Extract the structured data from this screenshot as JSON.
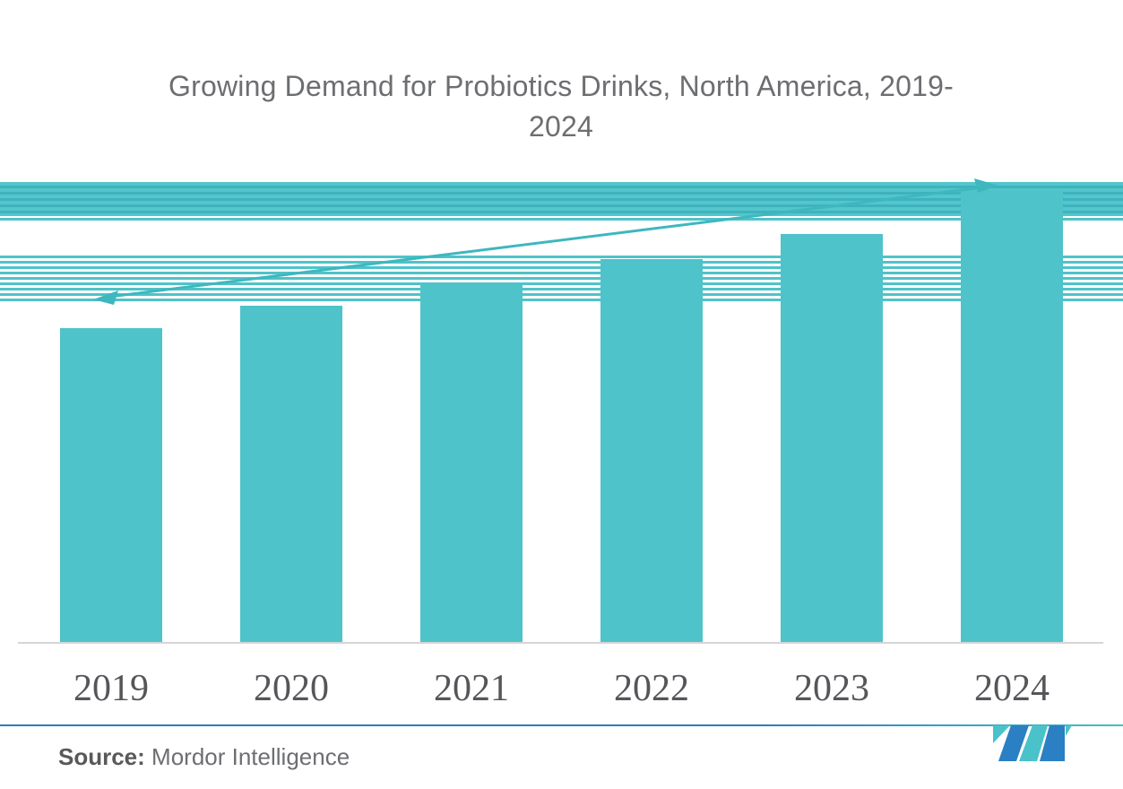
{
  "title": {
    "text": "Growing Demand for Probiotics Drinks, North America, 2019-2024",
    "line1": "Growing Demand for Probiotics Drinks, North America, 2019-",
    "line2": "2024"
  },
  "footer": {
    "source_label": "Source:",
    "source_value": "Mordor Intelligence"
  },
  "colors": {
    "bar_teal": "#4EC3C9",
    "band_dark_teal": "#3FB2BC",
    "trend_arrow_teal": "#3EB7BF",
    "axis_gray": "#D5D5D7",
    "title_gray": "#6D6E71",
    "year_label_gray": "#55565A",
    "divider_blue": "#2E7CC0",
    "logo_blue": "#2B7FC3",
    "logo_teal": "#49C2C9"
  },
  "chart_data": {
    "type": "bar",
    "title": "Growing Demand for Probiotics Drinks, North America, 2019-2024",
    "categories": [
      "2019",
      "2020",
      "2021",
      "2022",
      "2023",
      "2024"
    ],
    "values": [
      100,
      107,
      114,
      122,
      130,
      144
    ],
    "values_note": "No y-axis or data labels shown; values are a relative index estimated from bar heights (2019 = 100)",
    "xlabel": "",
    "ylabel": "",
    "ylim": [
      0,
      144
    ],
    "gridlines": false,
    "legend": false,
    "annotations": [
      "double-headed upward trend arrow rising across the bars from 2019 to 2024"
    ]
  }
}
